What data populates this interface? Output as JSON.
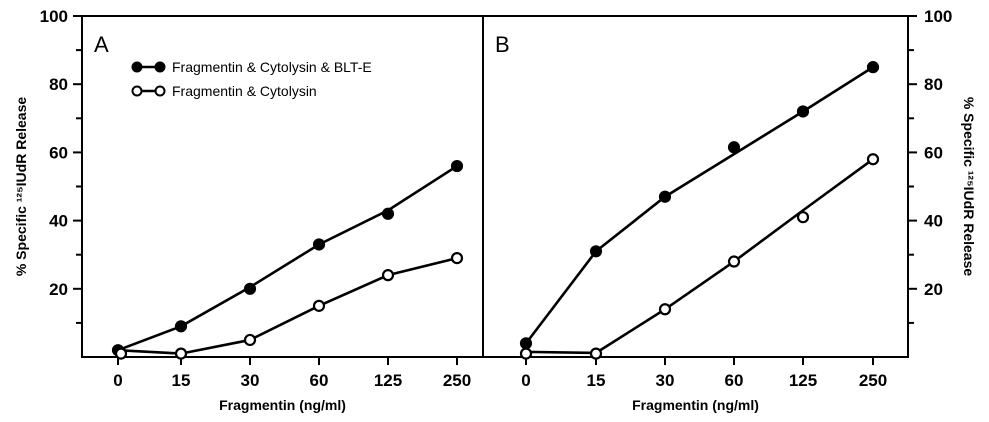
{
  "chart_data": [
    {
      "type": "line",
      "panel_label": "A",
      "x_categories": [
        "0",
        "15",
        "30",
        "60",
        "125",
        "250"
      ],
      "xlabel": "Fragmentin (ng/ml)",
      "ylabel": "% Specific ¹²⁵IUdR Release",
      "ylim": [
        0,
        100
      ],
      "y_ticks": [
        20,
        40,
        60,
        80,
        100
      ],
      "y_axis_side": "left",
      "legend": {
        "placement": "top-left"
      },
      "series": [
        {
          "name": "Fragmentin & Cytolysin & BLT-E",
          "marker": "filled-circle",
          "points": [
            [
              0,
              2
            ],
            [
              15,
              9
            ],
            [
              30,
              20
            ],
            [
              60,
              33
            ],
            [
              125,
              42
            ],
            [
              250,
              56
            ]
          ],
          "line": [
            [
              0,
              2
            ],
            [
              15,
              9
            ],
            [
              30,
              20.5
            ],
            [
              60,
              33
            ],
            [
              125,
              43
            ],
            [
              250,
              56
            ]
          ]
        },
        {
          "name": "Fragmentin & Cytolysin",
          "marker": "open-circle",
          "points": [
            [
              0,
              1
            ],
            [
              15,
              1
            ],
            [
              30,
              5
            ],
            [
              60,
              15
            ],
            [
              125,
              24
            ],
            [
              250,
              29
            ]
          ],
          "line": [
            [
              0,
              2
            ],
            [
              15,
              1
            ],
            [
              30,
              5
            ],
            [
              60,
              15
            ],
            [
              125,
              24
            ],
            [
              250,
              29
            ]
          ]
        }
      ]
    },
    {
      "type": "line",
      "panel_label": "B",
      "x_categories": [
        "0",
        "15",
        "30",
        "60",
        "125",
        "250"
      ],
      "xlabel": "Fragmentin (ng/ml)",
      "ylabel": "% Specific ¹²⁵IUdR Release",
      "ylim": [
        0,
        100
      ],
      "y_ticks": [
        20,
        40,
        60,
        80,
        100
      ],
      "y_axis_side": "right",
      "series": [
        {
          "name": "Fragmentin & Cytolysin & BLT-E",
          "marker": "filled-circle",
          "points": [
            [
              0,
              4
            ],
            [
              15,
              31
            ],
            [
              30,
              47
            ],
            [
              60,
              61.5
            ],
            [
              125,
              72
            ],
            [
              250,
              85
            ]
          ],
          "line": [
            [
              0,
              4
            ],
            [
              15,
              31
            ],
            [
              30,
              47
            ],
            [
              60,
              59.5
            ],
            [
              125,
              72
            ],
            [
              250,
              85
            ]
          ]
        },
        {
          "name": "Fragmentin & Cytolysin",
          "marker": "open-circle",
          "points": [
            [
              0,
              1
            ],
            [
              15,
              1
            ],
            [
              30,
              14
            ],
            [
              60,
              28
            ],
            [
              125,
              41
            ],
            [
              250,
              58
            ]
          ],
          "line": [
            [
              0,
              1.5
            ],
            [
              15,
              1.2
            ],
            [
              30,
              14
            ],
            [
              60,
              28
            ],
            [
              125,
              43
            ],
            [
              250,
              58
            ]
          ]
        }
      ]
    }
  ]
}
